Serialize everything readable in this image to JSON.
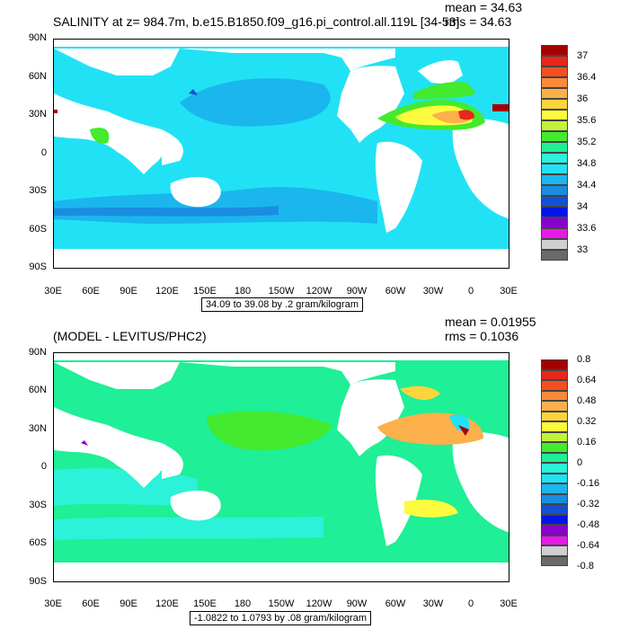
{
  "chart_data": [
    {
      "type": "heatmap",
      "title": "SALINITY at z= 984.7m, b.e15.B1850.f09_g16.pi_control.all.119L [34-53]",
      "stats": {
        "mean": "mean = 34.63",
        "rms": "rms = 34.63"
      },
      "y_ticks": [
        "90N",
        "60N",
        "30N",
        "0",
        "30S",
        "60S",
        "90S"
      ],
      "x_ticks": [
        "30E",
        "60E",
        "90E",
        "120E",
        "150E",
        "180",
        "150W",
        "120W",
        "90W",
        "60W",
        "30W",
        "0",
        "30E"
      ],
      "contour_info": "34.09 to 39.08 by .2 gram/kilogram",
      "colorbar_levels": [
        "37",
        "36.4",
        "36",
        "35.6",
        "35.2",
        "34.8",
        "34.4",
        "34",
        "33.6",
        "33"
      ],
      "colorbar_colors": [
        "#a50000",
        "#e8261c",
        "#f4501f",
        "#f98a3a",
        "#fbb04c",
        "#fcd53d",
        "#fefb3e",
        "#c3f23a",
        "#43ea2d",
        "#1fef96",
        "#2bf2d8",
        "#21e2f5",
        "#1bb6ee",
        "#1a8de0",
        "#1450d6",
        "#0015e5",
        "#8800cc",
        "#e81ae8",
        "#cfcfcf",
        "#6a6a6a"
      ]
    },
    {
      "type": "heatmap",
      "title": "(MODEL - LEVITUS/PHC2)",
      "stats": {
        "mean": "mean = 0.01955",
        "rms": "rms = 0.1036"
      },
      "y_ticks": [
        "90N",
        "60N",
        "30N",
        "0",
        "30S",
        "60S",
        "90S"
      ],
      "x_ticks": [
        "30E",
        "60E",
        "90E",
        "120E",
        "150E",
        "180",
        "150W",
        "120W",
        "90W",
        "60W",
        "30W",
        "0",
        "30E"
      ],
      "contour_info": "-1.0822 to 1.0793 by .08 gram/kilogram",
      "colorbar_levels": [
        "0.8",
        "0.64",
        "0.48",
        "0.32",
        "0.16",
        "0",
        "-0.16",
        "-0.32",
        "-0.48",
        "-0.64",
        "-0.8"
      ],
      "colorbar_colors": [
        "#a50000",
        "#e8261c",
        "#f4501f",
        "#f98a3a",
        "#fbb04c",
        "#fcd53d",
        "#fefb3e",
        "#c3f23a",
        "#43ea2d",
        "#1fef96",
        "#2bf2d8",
        "#21e2f5",
        "#1bb6ee",
        "#1a8de0",
        "#1450d6",
        "#0015e5",
        "#8800cc",
        "#e81ae8",
        "#cfcfcf",
        "#6a6a6a"
      ]
    }
  ]
}
